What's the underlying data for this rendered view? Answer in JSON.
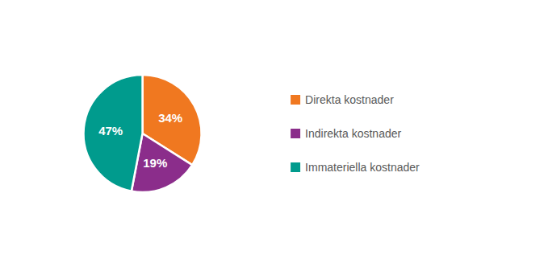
{
  "chart_data": {
    "type": "pie",
    "categories": [
      "Direkta kostnader",
      "Indirekta kostnader",
      "Immateriella kostnader"
    ],
    "values": [
      34,
      19,
      47
    ],
    "value_labels": [
      "34%",
      "19%",
      "47%"
    ],
    "colors": [
      "#F07820",
      "#8B2D8B",
      "#009B8D"
    ],
    "data_labels": true,
    "legend": "right"
  }
}
